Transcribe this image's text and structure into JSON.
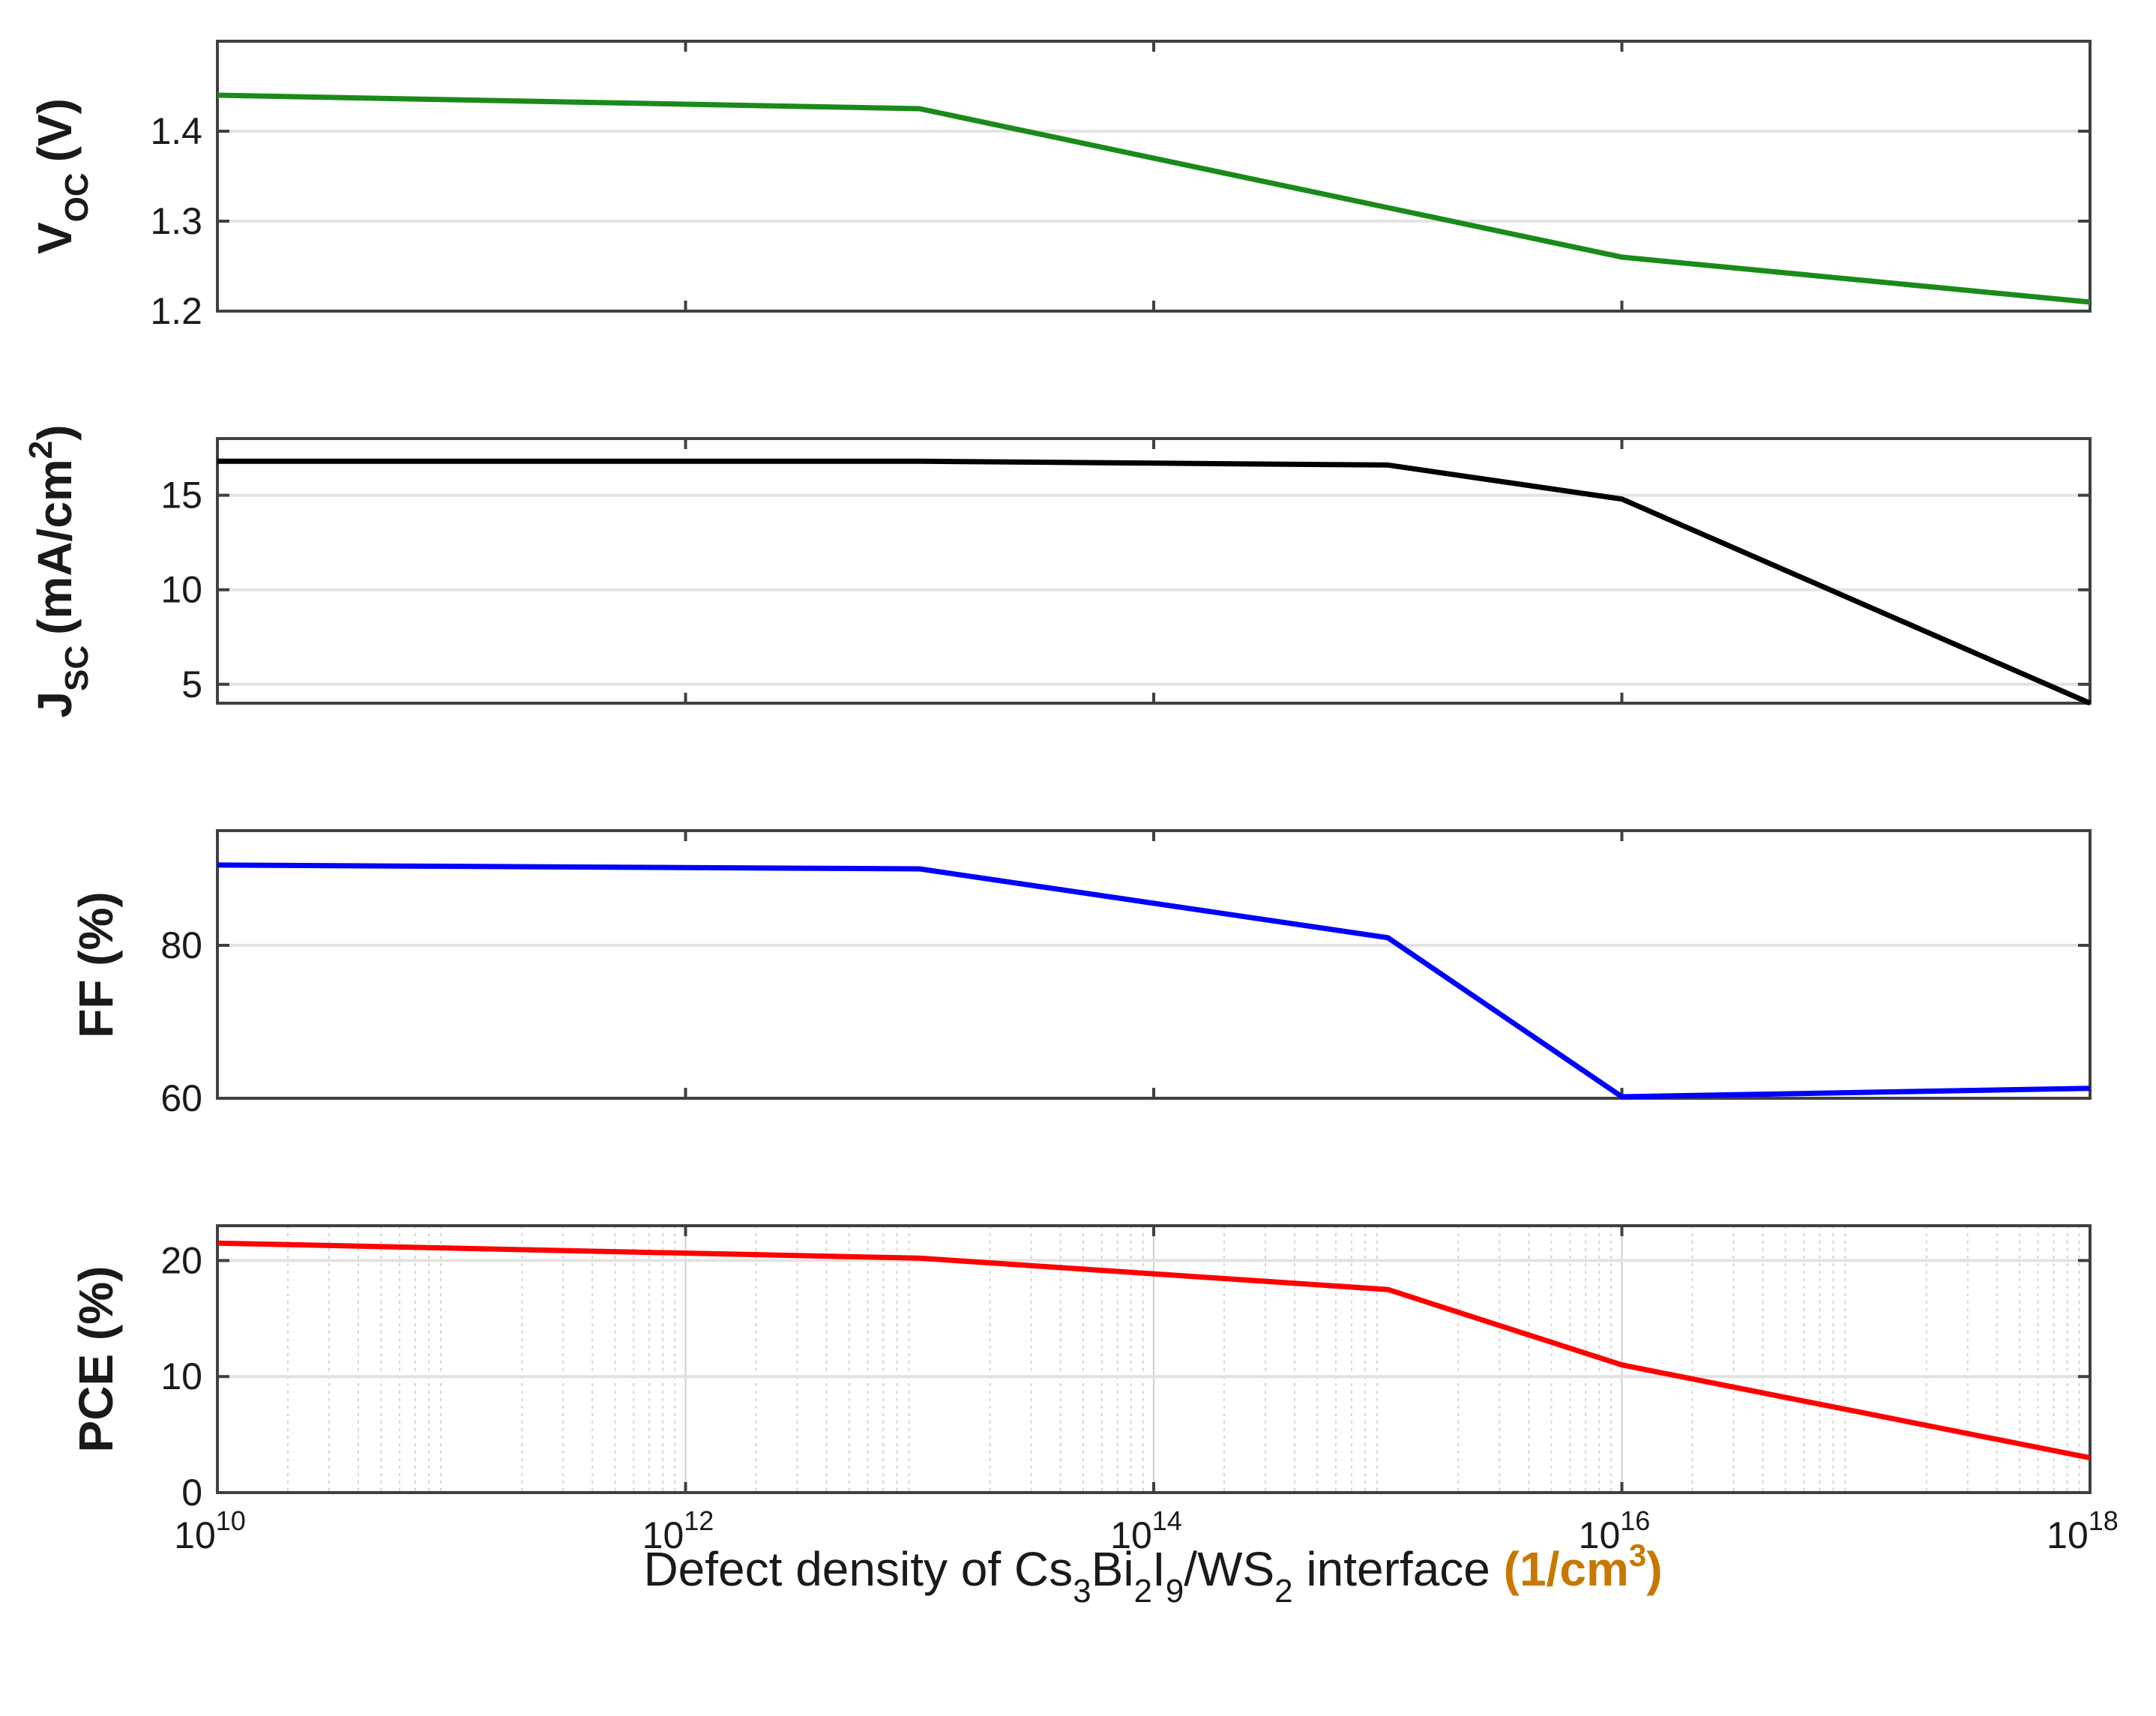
{
  "chart_data": [
    {
      "type": "line",
      "panel": "voc",
      "ylabel_main": "V",
      "ylabel_sub": "OC",
      "ylabel_unit": "(V)",
      "x": [
        10000000000.0,
        10000000000000.0,
        1000000000000000.0,
        1e+16,
        1e+18
      ],
      "y": [
        1.44,
        1.425,
        1.315,
        1.26,
        1.21
      ],
      "ylim": [
        1.2,
        1.5
      ],
      "yticks": [
        1.2,
        1.3,
        1.4
      ],
      "ytick_labels": [
        "1.2",
        "1.3",
        "1.4"
      ],
      "color": "#1a8a1a"
    },
    {
      "type": "line",
      "panel": "jsc",
      "ylabel_main": "J",
      "ylabel_sub": "SC",
      "ylabel_unit": "(mA/cm",
      "ylabel_sup": "2",
      "ylabel_close": ")",
      "x": [
        10000000000.0,
        10000000000000.0,
        1000000000000000.0,
        1e+16,
        1e+18
      ],
      "y": [
        16.8,
        16.8,
        16.6,
        14.8,
        4.0
      ],
      "ylim": [
        4,
        18
      ],
      "yticks": [
        5,
        10,
        15
      ],
      "ytick_labels": [
        "5",
        "10",
        "15"
      ],
      "color": "#000000"
    },
    {
      "type": "line",
      "panel": "ff",
      "ylabel": "FF (%)",
      "x": [
        10000000000.0,
        10000000000000.0,
        1000000000000000.0,
        1e+16,
        1e+18
      ],
      "y": [
        90.5,
        90.0,
        81.0,
        60.2,
        61.3
      ],
      "ylim": [
        60,
        95
      ],
      "yticks": [
        60,
        80
      ],
      "ytick_labels": [
        "60",
        "80"
      ],
      "color": "#0000ff"
    },
    {
      "type": "line",
      "panel": "pce",
      "ylabel": "PCE (%)",
      "x": [
        10000000000.0,
        10000000000000.0,
        1000000000000000.0,
        1e+16,
        1e+18
      ],
      "y": [
        21.5,
        20.2,
        17.5,
        11.0,
        3.0
      ],
      "ylim": [
        0,
        23
      ],
      "yticks": [
        0,
        10,
        20
      ],
      "ytick_labels": [
        "0",
        "10",
        "20"
      ],
      "color": "#ff0000",
      "minor_grid": true
    }
  ],
  "x_axis": {
    "scale": "log",
    "xlim": [
      10000000000.0,
      1e+18
    ],
    "ticks": [
      {
        "value": 10000000000.0,
        "base": "10",
        "exp": "10"
      },
      {
        "value": 1000000000000.0,
        "base": "10",
        "exp": "12"
      },
      {
        "value": 100000000000000.0,
        "base": "10",
        "exp": "14"
      },
      {
        "value": 1e+16,
        "base": "10",
        "exp": "16"
      },
      {
        "value": 1e+18,
        "base": "10",
        "exp": "18"
      }
    ],
    "label_parts": [
      "Defect density of Cs",
      "3",
      "Bi",
      "2",
      "I",
      "9",
      "/WS",
      "2",
      " interface "
    ],
    "label_unit_parts": [
      "(1/cm",
      "3",
      ")"
    ],
    "label_unit_color": "#c87800"
  }
}
